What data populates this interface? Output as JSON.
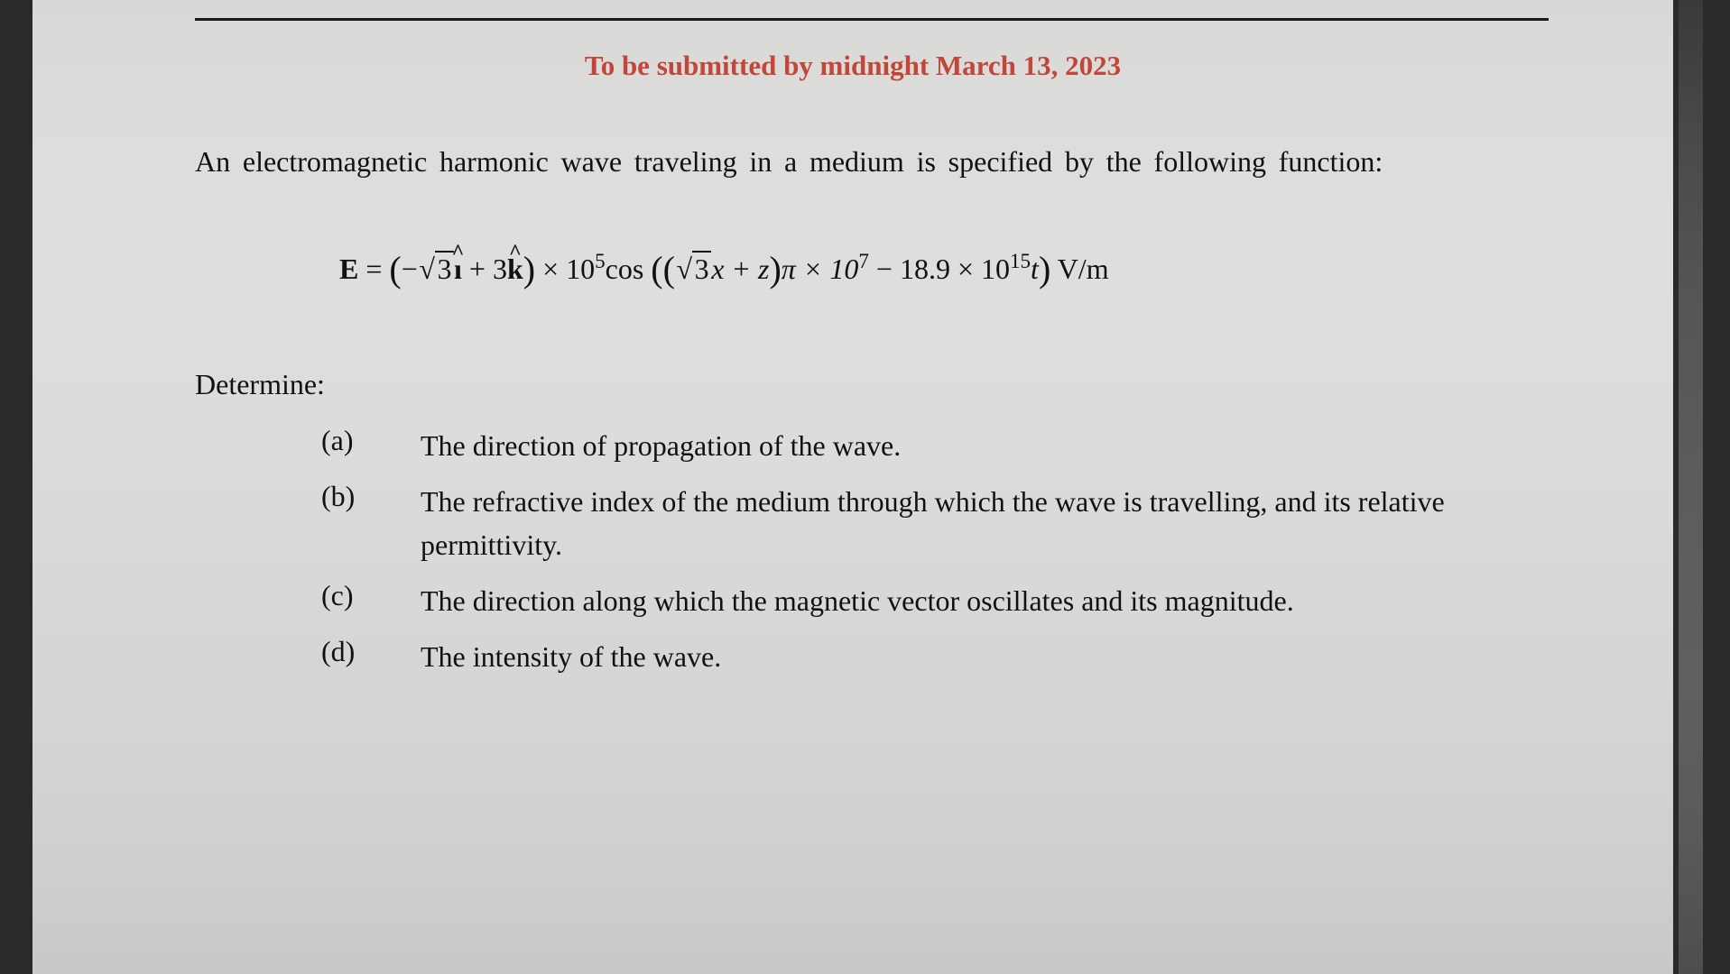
{
  "headline": "To be submitted by midnight March 13, 2023",
  "intro": "An electromagnetic harmonic wave traveling in a medium is specified by the following function:",
  "equation": {
    "lhs": "E",
    "eq": " = ",
    "open1": "(",
    "neg": "−",
    "sqrt3a": "3",
    "i": "î",
    "plus1": " + 3",
    "k": "k̂",
    "close1": ")",
    "times1": " × 10",
    "exp5": "5",
    "cos": "cos ",
    "bigopen": "(",
    "open2": "(",
    "sqrt3b": "3",
    "xz": "x + z",
    "close2": ")",
    "pi": "π × 10",
    "exp7": "7",
    "minus": " − 18.9 × 10",
    "exp15": "15",
    "t": "t",
    "bigclose": ")",
    "units": " V/m"
  },
  "determine": "Determine:",
  "items": [
    {
      "label": "(a)",
      "text": "The direction of propagation of the wave."
    },
    {
      "label": "(b)",
      "text": "The refractive index of the medium through which the wave is travelling, and its relative permittivity."
    },
    {
      "label": "(c)",
      "text": "The direction along which the magnetic vector oscillates and its magnitude."
    },
    {
      "label": "(d)",
      "text": "The intensity of the wave."
    }
  ],
  "colors": {
    "headline": "#c2463a",
    "text": "#111111",
    "rule": "#1a1a1a",
    "paper": "#dcdcda",
    "frame": "#2a2a2c"
  }
}
